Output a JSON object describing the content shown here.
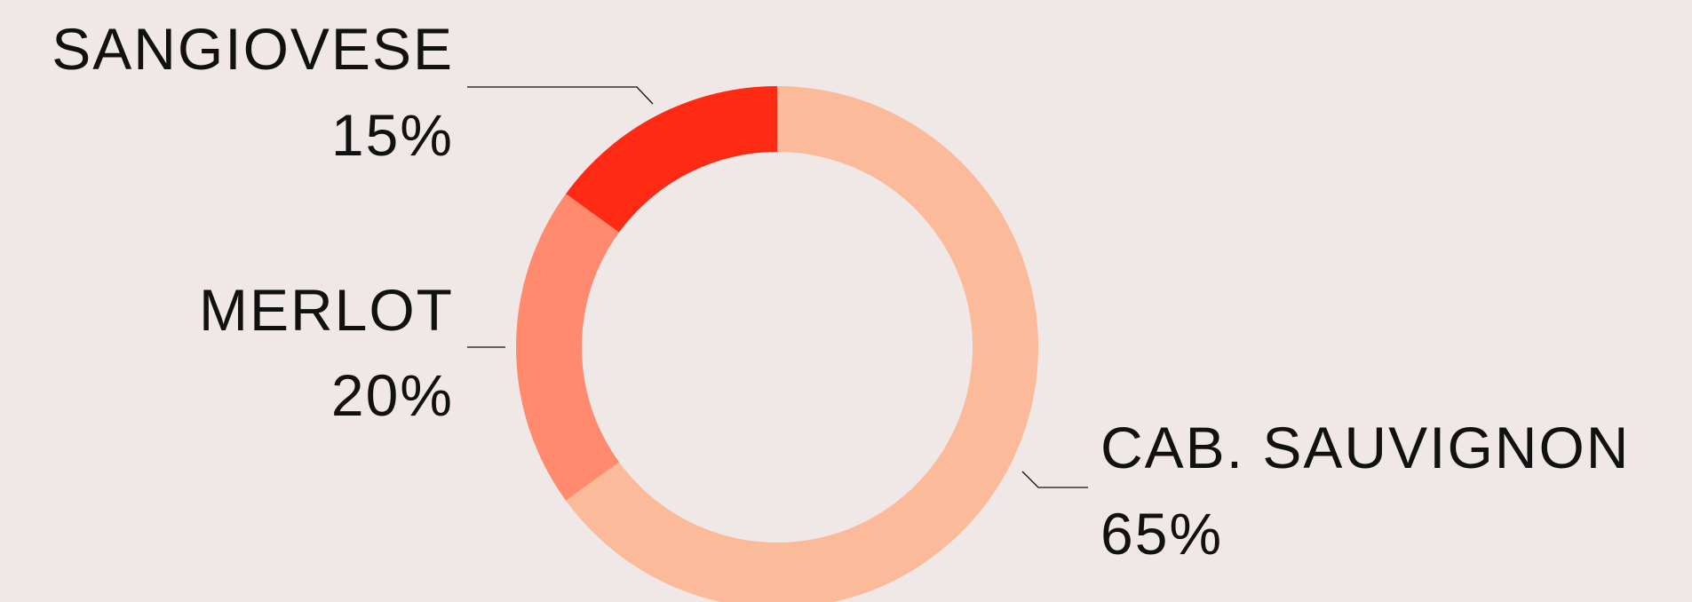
{
  "chart_data": {
    "type": "donut",
    "categories": [
      "CAB. SAUVIGNON",
      "MERLOT",
      "SANGIOVESE"
    ],
    "values": [
      65,
      20,
      15
    ],
    "value_labels": [
      "65%",
      "20%",
      "15%"
    ],
    "colors": [
      "#fbbb9a",
      "#ff8a6e",
      "#ff2a14"
    ]
  }
}
